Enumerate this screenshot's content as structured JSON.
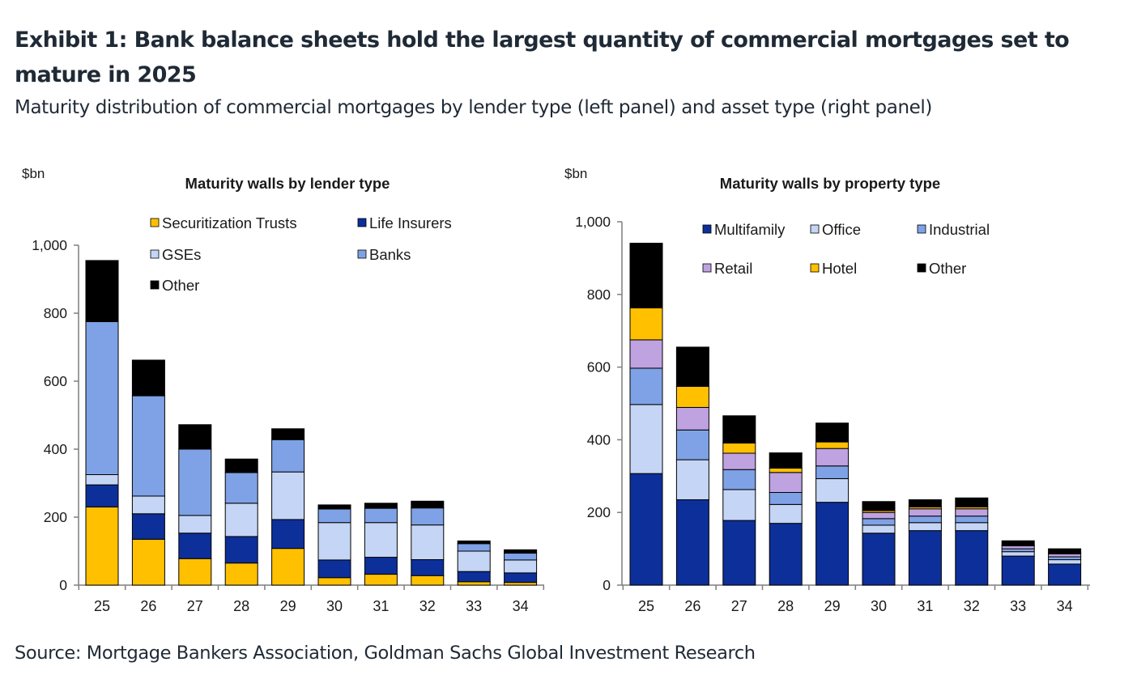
{
  "header": {
    "title": "Exhibit 1: Bank balance sheets hold the largest quantity of commercial mortgages set to mature in 2025",
    "subtitle": "Maturity distribution of commercial mortgages by lender type (left panel) and asset type (right panel)"
  },
  "footer": {
    "source": "Source: Mortgage Bankers Association, Goldman Sachs Global Investment Research"
  },
  "chart_data": [
    {
      "type": "bar",
      "stacked": true,
      "title": "Maturity walls by lender type",
      "ylabel": "$bn",
      "xlabel": "",
      "ylim": [
        0,
        1000
      ],
      "yticks": [
        0,
        200,
        400,
        600,
        800,
        1000
      ],
      "ytick_labels": [
        "0",
        "200",
        "400",
        "600",
        "800",
        "1,000"
      ],
      "categories": [
        "25",
        "26",
        "27",
        "28",
        "29",
        "30",
        "31",
        "32",
        "33",
        "34"
      ],
      "legend": {
        "placement": "top"
      },
      "series": [
        {
          "name": "Securitization Trusts",
          "color": "#FFC000",
          "values": [
            230,
            135,
            78,
            65,
            108,
            22,
            32,
            28,
            10,
            8
          ]
        },
        {
          "name": "Life Insurers",
          "color": "#0D2F9A",
          "values": [
            65,
            75,
            75,
            78,
            85,
            52,
            50,
            47,
            30,
            28
          ]
        },
        {
          "name": "GSEs",
          "color": "#C5D5F5",
          "values": [
            30,
            52,
            52,
            98,
            140,
            110,
            102,
            102,
            60,
            38
          ]
        },
        {
          "name": "Banks",
          "color": "#7EA2E5",
          "values": [
            450,
            295,
            195,
            90,
            95,
            40,
            42,
            50,
            22,
            20
          ]
        },
        {
          "name": "Other",
          "color": "#000000",
          "values": [
            180,
            105,
            72,
            40,
            32,
            12,
            15,
            20,
            8,
            10
          ]
        }
      ],
      "legend_order": [
        "Securitization Trusts",
        "Life Insurers",
        "GSEs",
        "Banks",
        "Other"
      ]
    },
    {
      "type": "bar",
      "stacked": true,
      "title": "Maturity walls by property type",
      "ylabel": "$bn",
      "xlabel": "",
      "ylim": [
        0,
        1000
      ],
      "yticks": [
        0,
        200,
        400,
        600,
        800,
        1000
      ],
      "ytick_labels": [
        "0",
        "200",
        "400",
        "600",
        "800",
        "1,000"
      ],
      "categories": [
        "25",
        "26",
        "27",
        "28",
        "29",
        "30",
        "31",
        "32",
        "33",
        "34"
      ],
      "legend": {
        "placement": "top"
      },
      "series": [
        {
          "name": "Multifamily",
          "color": "#0D2F9A",
          "values": [
            307,
            235,
            178,
            170,
            228,
            143,
            150,
            150,
            80,
            58
          ]
        },
        {
          "name": "Office",
          "color": "#C5D5F5",
          "values": [
            190,
            110,
            85,
            52,
            65,
            22,
            22,
            22,
            12,
            12
          ]
        },
        {
          "name": "Industrial",
          "color": "#7EA2E5",
          "values": [
            100,
            82,
            55,
            33,
            35,
            18,
            18,
            18,
            8,
            8
          ]
        },
        {
          "name": "Retail",
          "color": "#BFA2E0",
          "values": [
            78,
            62,
            45,
            55,
            48,
            17,
            20,
            20,
            8,
            8
          ]
        },
        {
          "name": "Hotel",
          "color": "#FFC000",
          "values": [
            88,
            58,
            28,
            12,
            18,
            5,
            5,
            5,
            2,
            2
          ]
        },
        {
          "name": "Other",
          "color": "#000000",
          "values": [
            178,
            108,
            75,
            42,
            52,
            25,
            20,
            25,
            12,
            12
          ]
        }
      ],
      "legend_order": [
        "Multifamily",
        "Office",
        "Industrial",
        "Retail",
        "Hotel",
        "Other"
      ]
    }
  ]
}
